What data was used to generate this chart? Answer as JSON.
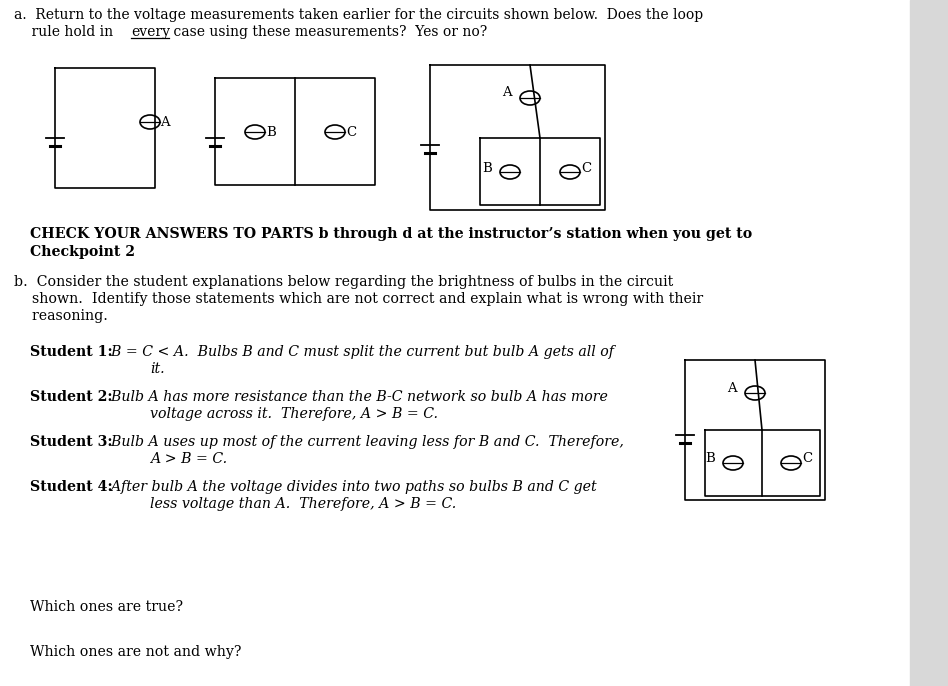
{
  "bg_color": "#ffffff",
  "text_color": "#000000",
  "fig_width": 9.48,
  "fig_height": 6.86,
  "line1": "a.  Return to the voltage measurements taken earlier for the circuits shown below.  Does the loop",
  "line2_pre": "    rule hold in ",
  "line2_every": "every",
  "line2_post": " case using these measurements?  Yes or no?",
  "check_line1": "CHECK YOUR ANSWERS TO PARTS b through d at the instructor’s station when you get to",
  "check_line2": "Checkpoint 2",
  "part_b1": "b.  Consider the student explanations below regarding the brightness of bulbs in the circuit",
  "part_b2": "    shown.  Identify those statements which are not correct and explain what is wrong with their",
  "part_b3": "    reasoning.",
  "which_true": "Which ones are true?",
  "which_not": "Which ones are not and why?"
}
